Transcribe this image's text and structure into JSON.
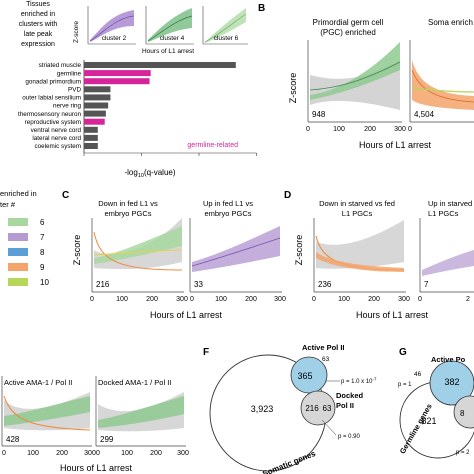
{
  "panel_a": {
    "title_lines": [
      "Tissues",
      "enriched in",
      "clusters with",
      "late peak",
      "expression"
    ],
    "inset_ylabel": "Z-score",
    "inset_clusters": [
      "cluster 2",
      "cluster 4",
      "cluster 6"
    ],
    "inset_xlabel": "Hours of L1 arrest",
    "germline_label": "germline-related",
    "xlabel_main": "-log",
    "xlabel_sub": "10",
    "xlabel_tail": "(q-value)"
  },
  "panel_b": {
    "letter": "B",
    "title_lines": [
      "Primordial germ cell",
      "(PGC) enriched"
    ],
    "title2": "Soma enrich",
    "ylabel": "Z-score",
    "count1": "948",
    "count2": "4,504",
    "ticks": [
      "0",
      "100",
      "200",
      "300",
      "0"
    ],
    "xlabel": "Hours of L1 arrest"
  },
  "panel_c": {
    "letter": "C",
    "title1_lines": [
      "Down in fed L1 vs",
      "embryo PGCs"
    ],
    "title2_lines": [
      "Up in fed L1 vs",
      "embryo PGCs"
    ],
    "ylabel": "Z-score",
    "count1": "216",
    "count2": "33",
    "ticks": [
      "0",
      "100",
      "200",
      "300",
      "0",
      "100",
      "200",
      "300"
    ],
    "xlabel": "Hours of L1 arrest"
  },
  "panel_d": {
    "letter": "D",
    "title1_lines": [
      "Down in starved vs fed",
      "L1 PGCs"
    ],
    "title2_lines": [
      "Up in starved",
      "L1 PGCs"
    ],
    "ylabel": "Z-score",
    "count1": "236",
    "count2": "7",
    "ticks": [
      "0",
      "100",
      "200",
      "300",
      "0",
      "2"
    ],
    "xlabel": "Hours of L1 arrest"
  },
  "panel_e": {
    "title1": "Active AMA-1 / Pol II",
    "title2": "Docked AMA-1 / Pol II",
    "count1": "428",
    "count2": "299",
    "ticks": [
      "0",
      "100",
      "200",
      "300",
      "0",
      "100",
      "200",
      "300"
    ],
    "xlabel": "Hours of L1 arrest"
  },
  "legend": {
    "title_lines": [
      "enriched in",
      "ter #"
    ],
    "entries": [
      {
        "label": "6",
        "color": "#a8d8a0"
      },
      {
        "label": "7",
        "color": "#b59ad2"
      },
      {
        "label": "8",
        "color": "#5a9fd6"
      },
      {
        "label": "9",
        "color": "#f4a36a"
      },
      {
        "label": "10",
        "color": "#b8d65a"
      }
    ]
  },
  "panel_f": {
    "letter": "F",
    "active_label_lines": [
      "Active Pol II"
    ],
    "active_only": "63",
    "overlap_active": "365",
    "p1": "p = 1.0 x 10",
    "p1_exp": "-7",
    "somatic_only": "3,923",
    "docked_label_lines": [
      "Docked",
      "Pol II"
    ],
    "overlap_docked": "216",
    "overlap_triple": "63",
    "p2": "p = 0.90",
    "circle_label": "Somatic genes"
  },
  "panel_g": {
    "letter": "G",
    "active_label": "Active Po",
    "n1": "46",
    "n2": "382",
    "p1": "p = 1",
    "germline_only": "821",
    "n3": "8",
    "p2": "p = 2",
    "circle_label": "Germline genes"
  },
  "chart_data": [
    {
      "type": "bar",
      "title": "Tissues enriched in clusters with late peak expression",
      "xlabel": "-log10(q-value)",
      "ylabel": "",
      "orientation": "horizontal",
      "categories": [
        "striated muscle",
        "germline",
        "gonadal primordium",
        "PVD",
        "outer labial sensilium",
        "nerve ring",
        "thermosensory neuron",
        "reproductive system",
        "ventral nerve cord",
        "lateral nerve cord",
        "coelemic system"
      ],
      "values": [
        13.2,
        5.8,
        5.7,
        2.3,
        2.3,
        2.1,
        1.9,
        1.8,
        1.2,
        1.2,
        1.2
      ],
      "colors": [
        "#555555",
        "#d6259a",
        "#d6259a",
        "#555555",
        "#555555",
        "#555555",
        "#555555",
        "#d6259a",
        "#555555",
        "#555555",
        "#555555"
      ]
    }
  ]
}
